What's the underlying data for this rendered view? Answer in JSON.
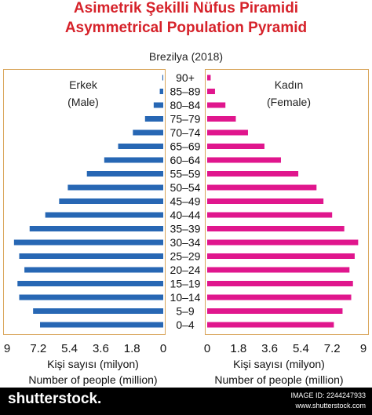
{
  "header": {
    "title_tr": "Asimetrik Şekilli Nüfus Piramidi",
    "title_en": "Asymmetrical Population Pyramid",
    "subtitle": "Brezilya (2018)"
  },
  "labels": {
    "male_tr": "Erkek",
    "male_en": "(Male)",
    "female_tr": "Kadın",
    "female_en": "(Female)",
    "x_axis_tr": "Kişi sayısı (milyon)",
    "x_axis_en": "Number of people (million)"
  },
  "colors": {
    "title": "#d6222a",
    "male": "#2767b4",
    "female": "#e0168d",
    "frame": "#d9a55a"
  },
  "footer": {
    "brand": "shutterstock",
    "brand_suffix": ".",
    "image_id": "IMAGE ID: 2244247933",
    "site": "www.shutterstock.com"
  },
  "chart_data": {
    "type": "bar",
    "orientation": "horizontal-pyramid",
    "categories": [
      "90+",
      "85-89",
      "80-84",
      "75-79",
      "70-74",
      "65-69",
      "60-64",
      "55-59",
      "50-54",
      "45-49",
      "40-44",
      "35-39",
      "30-34",
      "25-29",
      "20-24",
      "15-19",
      "10-14",
      "5-9",
      "0-4"
    ],
    "category_labels": [
      "90+",
      "85–89",
      "80–84",
      "75–79",
      "70–74",
      "65–69",
      "60–64",
      "55–59",
      "50–54",
      "45–49",
      "40–44",
      "35–39",
      "30–34",
      "25–29",
      "20–24",
      "15–19",
      "10–14",
      "5–9",
      "0–4"
    ],
    "series": [
      {
        "name": "Erkek (Male)",
        "side": "left",
        "values": [
          0.05,
          0.2,
          0.55,
          1.05,
          1.75,
          2.6,
          3.4,
          4.4,
          5.5,
          6.0,
          6.8,
          7.7,
          8.6,
          8.3,
          8.0,
          8.4,
          8.3,
          7.5,
          7.1
        ]
      },
      {
        "name": "Kadın (Female)",
        "side": "right",
        "values": [
          0.2,
          0.45,
          1.05,
          1.65,
          2.35,
          3.3,
          4.25,
          5.25,
          6.3,
          6.7,
          7.2,
          7.9,
          8.7,
          8.5,
          8.2,
          8.4,
          8.3,
          7.8,
          7.3
        ]
      }
    ],
    "xlim": [
      0,
      9
    ],
    "xticks": [
      "9",
      "7.2",
      "5.4",
      "3.6",
      "1.8",
      "0"
    ],
    "xticks_right": [
      "0",
      "1.8",
      "3.6",
      "5.4",
      "7.2",
      "9"
    ],
    "xlabel": "Kişi sayısı (milyon) / Number of people (million)",
    "grid": false
  }
}
